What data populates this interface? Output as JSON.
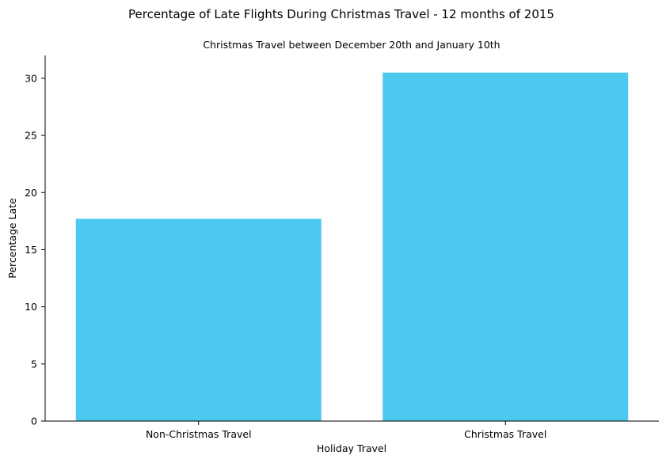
{
  "chart_data": {
    "type": "bar",
    "title": "Percentage of Late Flights During Christmas Travel - 12 months of 2015",
    "subtitle": "Christmas Travel between December 20th and January 10th",
    "xlabel": "Holiday Travel",
    "ylabel": "Percentage Late",
    "categories": [
      "Non-Christmas Travel",
      "Christmas Travel"
    ],
    "values": [
      17.7,
      30.5
    ],
    "ylim": [
      0,
      32
    ],
    "yticks": [
      0,
      5,
      10,
      15,
      20,
      25,
      30
    ],
    "bar_color": "#4dc9f0",
    "grid": false,
    "legend": "none"
  }
}
